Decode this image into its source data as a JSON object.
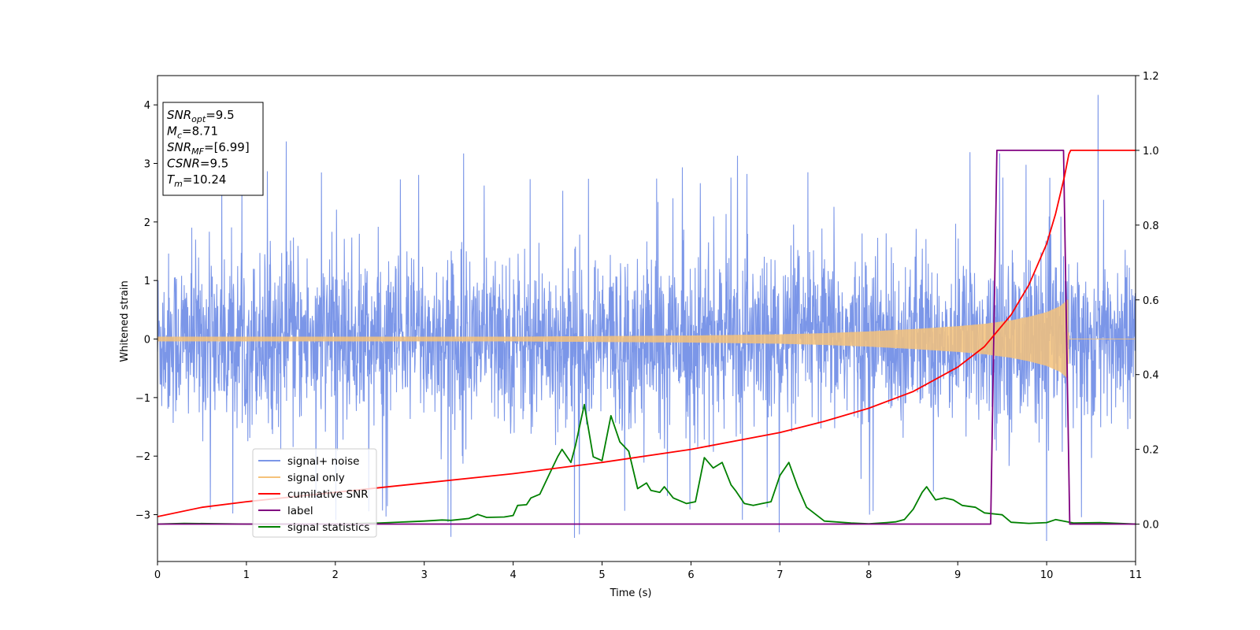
{
  "chart_data": {
    "type": "line",
    "xlabel": "Time (s)",
    "ylabel": "Whitened strain",
    "xlim": [
      0,
      11
    ],
    "ylim_left": [
      -3.8,
      4.5
    ],
    "ylim_right": [
      -0.1,
      1.2
    ],
    "x_ticks": [
      0,
      1,
      2,
      3,
      4,
      5,
      6,
      7,
      8,
      9,
      10,
      11
    ],
    "y_ticks_left": [
      -3,
      -2,
      -1,
      0,
      1,
      2,
      3,
      4
    ],
    "y_ticks_right": [
      0.0,
      0.2,
      0.4,
      0.6,
      0.8,
      1.0,
      1.2
    ],
    "legend_position": "lower-left",
    "info_box": {
      "lines": [
        {
          "sym": "SNR",
          "sub": "opt",
          "val": "=9.5"
        },
        {
          "sym": "M",
          "sub": "c",
          "val": "=8.71"
        },
        {
          "sym": "SNR",
          "sub": "MF",
          "val": "=[6.99]"
        },
        {
          "sym": "CSNR",
          "sub": "",
          "val": "=9.5"
        },
        {
          "sym": "T",
          "sub": "m",
          "val": "=10.24"
        }
      ]
    },
    "series": [
      {
        "name": "signal+ noise",
        "color": "#7b96e8",
        "axis": "left",
        "x_range": [
          0,
          11
        ],
        "typical_amplitude": 1.6,
        "max_value": 4.17,
        "min_value": -3.45
      },
      {
        "name": "signal only",
        "color": "#f5c27a",
        "axis": "left",
        "envelope": {
          "x": [
            0,
            2,
            4,
            5,
            6,
            7,
            7.5,
            8,
            8.5,
            9,
            9.3,
            9.6,
            9.8,
            10.0,
            10.15,
            10.24,
            10.25,
            11
          ],
          "amplitude": [
            0.04,
            0.04,
            0.04,
            0.05,
            0.06,
            0.08,
            0.1,
            0.13,
            0.17,
            0.22,
            0.26,
            0.32,
            0.38,
            0.46,
            0.56,
            0.68,
            0.0,
            0.0
          ]
        }
      },
      {
        "name": "cumilative SNR",
        "color": "#ff0000",
        "axis": "right",
        "x": [
          0,
          0.5,
          1,
          2,
          3,
          4,
          5,
          6,
          7,
          7.5,
          8,
          8.5,
          9,
          9.3,
          9.6,
          9.8,
          10.0,
          10.1,
          10.2,
          10.25,
          10.27,
          11
        ],
        "y": [
          0.02,
          0.045,
          0.06,
          0.085,
          0.11,
          0.135,
          0.165,
          0.2,
          0.245,
          0.275,
          0.31,
          0.355,
          0.42,
          0.475,
          0.56,
          0.64,
          0.75,
          0.83,
          0.93,
          0.99,
          1.0,
          1.0
        ]
      },
      {
        "name": "label",
        "color": "#800080",
        "axis": "right",
        "x": [
          0,
          9.37,
          9.44,
          10.19,
          10.26,
          11
        ],
        "y": [
          0,
          0,
          1,
          1,
          0,
          0
        ]
      },
      {
        "name": "signal statistics",
        "color": "#008000",
        "axis": "right",
        "x": [
          0,
          0.3,
          1,
          2,
          2.5,
          2.8,
          3.0,
          3.2,
          3.3,
          3.5,
          3.6,
          3.7,
          3.9,
          4.0,
          4.05,
          4.15,
          4.2,
          4.3,
          4.4,
          4.5,
          4.55,
          4.65,
          4.7,
          4.8,
          4.9,
          5.0,
          5.1,
          5.2,
          5.3,
          5.4,
          5.5,
          5.55,
          5.65,
          5.7,
          5.8,
          5.9,
          5.95,
          6.05,
          6.15,
          6.25,
          6.35,
          6.45,
          6.5,
          6.6,
          6.7,
          6.8,
          6.9,
          7.0,
          7.1,
          7.2,
          7.3,
          7.5,
          7.8,
          8.0,
          8.2,
          8.3,
          8.4,
          8.5,
          8.6,
          8.65,
          8.75,
          8.85,
          8.95,
          9.05,
          9.2,
          9.3,
          9.5,
          9.6,
          9.8,
          10.0,
          10.1,
          10.3,
          10.6,
          11
        ],
        "y": [
          0.0,
          0.002,
          0.0,
          0.0,
          0.003,
          0.006,
          0.008,
          0.011,
          0.01,
          0.015,
          0.026,
          0.018,
          0.019,
          0.023,
          0.05,
          0.052,
          0.07,
          0.08,
          0.13,
          0.18,
          0.2,
          0.165,
          0.21,
          0.32,
          0.18,
          0.17,
          0.29,
          0.22,
          0.195,
          0.095,
          0.11,
          0.09,
          0.085,
          0.1,
          0.07,
          0.06,
          0.055,
          0.06,
          0.178,
          0.15,
          0.165,
          0.105,
          0.09,
          0.055,
          0.05,
          0.055,
          0.06,
          0.13,
          0.165,
          0.1,
          0.045,
          0.008,
          0.003,
          0.001,
          0.004,
          0.006,
          0.012,
          0.04,
          0.085,
          0.1,
          0.065,
          0.07,
          0.065,
          0.05,
          0.045,
          0.03,
          0.025,
          0.005,
          0.002,
          0.004,
          0.012,
          0.003,
          0.004,
          0.0
        ]
      }
    ]
  }
}
